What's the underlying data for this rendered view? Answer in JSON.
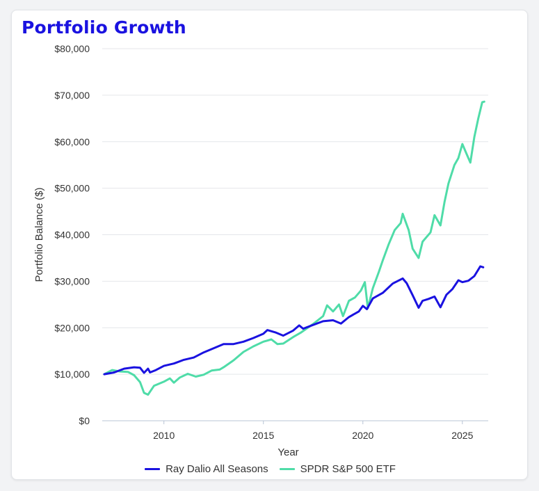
{
  "title": "Portfolio Growth",
  "chart_data": {
    "type": "line",
    "title": "Portfolio Growth",
    "xlabel": "Year",
    "ylabel": "Portfolio Balance ($)",
    "x_ticks": [
      "2010",
      "2015",
      "2020",
      "2025"
    ],
    "y_ticks": [
      "$0",
      "$10,000",
      "$20,000",
      "$30,000",
      "$40,000",
      "$50,000",
      "$60,000",
      "$70,000",
      "$80,000"
    ],
    "xlim": [
      2006.9,
      2026.3
    ],
    "ylim": [
      0,
      80000
    ],
    "grid": "horizontal",
    "legend": "bottom",
    "series": [
      {
        "name": "Ray Dalio All Seasons",
        "color": "#1a12e0",
        "points": [
          [
            2007.0,
            10000
          ],
          [
            2007.5,
            10400
          ],
          [
            2008.0,
            11200
          ],
          [
            2008.5,
            11500
          ],
          [
            2008.8,
            11400
          ],
          [
            2009.0,
            10300
          ],
          [
            2009.2,
            11200
          ],
          [
            2009.3,
            10400
          ],
          [
            2009.6,
            10900
          ],
          [
            2010.0,
            11800
          ],
          [
            2010.5,
            12300
          ],
          [
            2011.0,
            13100
          ],
          [
            2011.5,
            13600
          ],
          [
            2012.0,
            14700
          ],
          [
            2012.5,
            15600
          ],
          [
            2013.0,
            16500
          ],
          [
            2013.5,
            16500
          ],
          [
            2014.0,
            17000
          ],
          [
            2014.5,
            17800
          ],
          [
            2015.0,
            18700
          ],
          [
            2015.2,
            19500
          ],
          [
            2015.6,
            19000
          ],
          [
            2016.0,
            18300
          ],
          [
            2016.5,
            19400
          ],
          [
            2016.8,
            20500
          ],
          [
            2017.0,
            19800
          ],
          [
            2017.5,
            20600
          ],
          [
            2018.0,
            21400
          ],
          [
            2018.5,
            21600
          ],
          [
            2018.9,
            20900
          ],
          [
            2019.3,
            22300
          ],
          [
            2019.8,
            23500
          ],
          [
            2020.0,
            24700
          ],
          [
            2020.2,
            24000
          ],
          [
            2020.5,
            26300
          ],
          [
            2021.0,
            27500
          ],
          [
            2021.5,
            29500
          ],
          [
            2022.0,
            30600
          ],
          [
            2022.2,
            29600
          ],
          [
            2022.5,
            27000
          ],
          [
            2022.8,
            24300
          ],
          [
            2023.0,
            25800
          ],
          [
            2023.3,
            26200
          ],
          [
            2023.6,
            26700
          ],
          [
            2023.9,
            24400
          ],
          [
            2024.2,
            27100
          ],
          [
            2024.5,
            28300
          ],
          [
            2024.8,
            30200
          ],
          [
            2025.0,
            29800
          ],
          [
            2025.3,
            30100
          ],
          [
            2025.6,
            31100
          ],
          [
            2025.9,
            33200
          ],
          [
            2026.05,
            33000
          ]
        ]
      },
      {
        "name": "SPDR S&P 500 ETF",
        "color": "#4fdca8",
        "points": [
          [
            2007.0,
            10000
          ],
          [
            2007.4,
            10900
          ],
          [
            2007.8,
            10600
          ],
          [
            2008.2,
            10500
          ],
          [
            2008.5,
            9800
          ],
          [
            2008.8,
            8300
          ],
          [
            2009.0,
            6000
          ],
          [
            2009.2,
            5600
          ],
          [
            2009.5,
            7500
          ],
          [
            2010.0,
            8400
          ],
          [
            2010.3,
            9100
          ],
          [
            2010.5,
            8200
          ],
          [
            2010.8,
            9300
          ],
          [
            2011.2,
            10100
          ],
          [
            2011.6,
            9500
          ],
          [
            2012.0,
            9900
          ],
          [
            2012.4,
            10800
          ],
          [
            2012.8,
            11000
          ],
          [
            2013.0,
            11500
          ],
          [
            2013.5,
            13000
          ],
          [
            2014.0,
            14800
          ],
          [
            2014.5,
            16000
          ],
          [
            2015.0,
            17000
          ],
          [
            2015.4,
            17500
          ],
          [
            2015.7,
            16500
          ],
          [
            2016.0,
            16600
          ],
          [
            2016.5,
            18000
          ],
          [
            2016.9,
            19000
          ],
          [
            2017.5,
            20800
          ],
          [
            2018.0,
            22500
          ],
          [
            2018.2,
            24800
          ],
          [
            2018.5,
            23500
          ],
          [
            2018.8,
            25000
          ],
          [
            2019.0,
            22500
          ],
          [
            2019.3,
            25800
          ],
          [
            2019.6,
            26500
          ],
          [
            2019.9,
            28000
          ],
          [
            2020.1,
            29800
          ],
          [
            2020.25,
            24200
          ],
          [
            2020.5,
            28500
          ],
          [
            2020.8,
            32000
          ],
          [
            2021.0,
            34500
          ],
          [
            2021.3,
            38000
          ],
          [
            2021.6,
            41000
          ],
          [
            2021.9,
            42500
          ],
          [
            2022.0,
            44500
          ],
          [
            2022.3,
            41000
          ],
          [
            2022.5,
            37000
          ],
          [
            2022.8,
            35000
          ],
          [
            2023.0,
            38500
          ],
          [
            2023.4,
            40500
          ],
          [
            2023.6,
            44200
          ],
          [
            2023.9,
            42000
          ],
          [
            2024.1,
            47000
          ],
          [
            2024.3,
            51000
          ],
          [
            2024.6,
            55000
          ],
          [
            2024.8,
            56500
          ],
          [
            2025.0,
            59500
          ],
          [
            2025.2,
            57500
          ],
          [
            2025.4,
            55500
          ],
          [
            2025.6,
            61000
          ],
          [
            2025.8,
            65000
          ],
          [
            2026.0,
            68500
          ],
          [
            2026.1,
            68600
          ]
        ]
      }
    ]
  }
}
